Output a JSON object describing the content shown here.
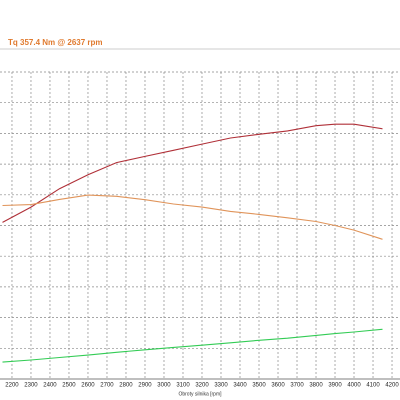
{
  "chart_data": {
    "type": "line",
    "title": "Tq 357.4 Nm @ 2637 rpm",
    "x_label": "Obroty silnika [rpm]",
    "x": [
      2150,
      2300,
      2450,
      2600,
      2750,
      2900,
      3050,
      3200,
      3350,
      3500,
      3650,
      3800,
      3900,
      4000,
      4150
    ],
    "series": [
      {
        "color": "#b03038",
        "values": [
          5.1,
          5.6,
          6.2,
          6.65,
          7.05,
          7.25,
          7.45,
          7.65,
          7.85,
          7.97,
          8.08,
          8.25,
          8.3,
          8.3,
          8.15
        ]
      },
      {
        "color": "#e0945a",
        "values": [
          5.65,
          5.68,
          5.85,
          5.99,
          5.95,
          5.84,
          5.7,
          5.6,
          5.46,
          5.36,
          5.25,
          5.13,
          5.0,
          4.85,
          4.55
        ]
      },
      {
        "color": "#33cc55",
        "values": [
          0.55,
          0.62,
          0.7,
          0.78,
          0.87,
          0.95,
          1.03,
          1.1,
          1.18,
          1.26,
          1.33,
          1.42,
          1.48,
          1.53,
          1.62
        ]
      }
    ],
    "xlim": [
      2137,
      4242
    ],
    "xticks": [
      2200,
      2300,
      2400,
      2500,
      2600,
      2700,
      2800,
      2900,
      3000,
      3100,
      3200,
      3300,
      3400,
      3500,
      3600,
      3700,
      3800,
      3900,
      4000,
      4100,
      4200
    ],
    "ylim": [
      0,
      10
    ],
    "yticks": [
      1,
      2,
      3,
      4,
      5,
      6,
      7,
      8,
      9,
      10
    ],
    "grid": true
  }
}
